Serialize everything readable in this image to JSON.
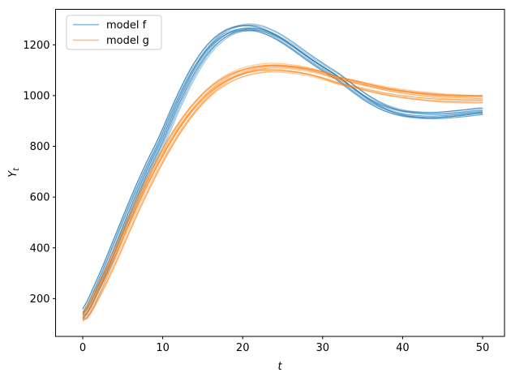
{
  "figure": {
    "background": "#ffffff",
    "spine_color": "#000000",
    "text_color": "#000000"
  },
  "legend": {
    "position": "upper left",
    "border_color": "#cccccc",
    "items": [
      {
        "label": "model f",
        "color": "#1f77b4"
      },
      {
        "label": "model g",
        "color": "#ff7f0e"
      }
    ]
  },
  "chart_data": {
    "type": "line",
    "title": "",
    "xlabel": "t",
    "ylabel": "Y_t",
    "grid": false,
    "legend_position": "upper left",
    "xlim": [
      -3.4,
      52.74
    ],
    "ylim": [
      51,
      1340
    ],
    "xticks": [
      0,
      10,
      20,
      30,
      40,
      50
    ],
    "yticks": [
      200,
      400,
      600,
      800,
      1000,
      1200
    ],
    "x": [
      0,
      2,
      4,
      6,
      8,
      10,
      12,
      14,
      16,
      18,
      20,
      22,
      24,
      26,
      28,
      30,
      32,
      34,
      36,
      38,
      40,
      42,
      44,
      46,
      48,
      50
    ],
    "series": [
      {
        "name": "model f",
        "color": "#1f77b4",
        "values": [
          130,
          250,
          400,
          555,
          700,
          830,
          975,
          1100,
          1190,
          1243,
          1264,
          1262,
          1238,
          1200,
          1155,
          1112,
          1072,
          1024,
          980,
          948,
          929,
          921,
          919,
          923,
          929,
          936
        ]
      },
      {
        "name": "model g",
        "color": "#ff7f0e",
        "values": [
          122,
          228,
          362,
          505,
          640,
          760,
          865,
          950,
          1015,
          1060,
          1088,
          1103,
          1108,
          1104,
          1095,
          1080,
          1060,
          1046,
          1031,
          1018,
          1008,
          1000,
          994,
          990,
          988,
          987
        ]
      }
    ],
    "ensemble": {
      "n_members": 14,
      "line_alpha": 0.45,
      "line_width": 1.1,
      "value_spread": 15,
      "time_jitter": 0.5,
      "wobble": 6
    }
  }
}
